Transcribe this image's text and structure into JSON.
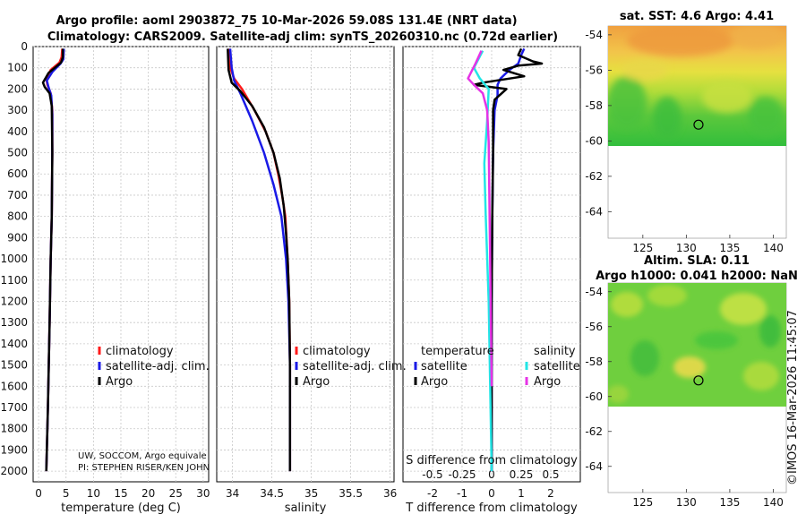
{
  "header": {
    "title_line1": "Argo profile: aoml 2903872_75 10-Mar-2026 59.08S 131.4E (NRT data)",
    "title_line2": "Climatology: CARS2009. Satellite-adj clim: synTS_20260310.nc (0.72d earlier)"
  },
  "depth_ticks": [
    "0",
    "100",
    "200",
    "300",
    "400",
    "500",
    "600",
    "700",
    "800",
    "900",
    "1000",
    "1100",
    "1200",
    "1300",
    "1400",
    "1500",
    "1600",
    "1700",
    "1800",
    "1900",
    "2000"
  ],
  "colors": {
    "climatology": "#ff1a1a",
    "satellite": "#1a1ae6",
    "argo": "#000000",
    "cyan": "#22e6e6",
    "magenta": "#e633e6"
  },
  "chart_data": [
    {
      "type": "line",
      "name": "temperature",
      "xlabel": "temperature (deg C)",
      "ylabel": "depth",
      "xlim": [
        -1,
        31
      ],
      "ylim": [
        2050,
        0
      ],
      "xticks": [
        "0",
        "5",
        "10",
        "15",
        "20",
        "25",
        "30"
      ],
      "legend": [
        "climatology",
        "satellite-adj. clim.",
        "Argo"
      ],
      "credit_line1": "UW, SOCCOM, Argo equivale",
      "credit_line2": "PI: STEPHEN RISER/KEN JOHN",
      "series": [
        {
          "name": "climatology",
          "color": "#ff1a1a",
          "points": [
            [
              4.3,
              10
            ],
            [
              4.2,
              50
            ],
            [
              3.8,
              75
            ],
            [
              2.2,
              110
            ],
            [
              1.4,
              150
            ],
            [
              1.6,
              180
            ],
            [
              2.2,
              220
            ],
            [
              2.5,
              300
            ],
            [
              2.5,
              500
            ],
            [
              2.4,
              800
            ],
            [
              2.2,
              1000
            ],
            [
              2.0,
              1300
            ],
            [
              1.7,
              1700
            ],
            [
              1.4,
              2000
            ]
          ]
        },
        {
          "name": "satellite-adj. clim.",
          "color": "#1a1ae6",
          "points": [
            [
              4.6,
              10
            ],
            [
              4.5,
              60
            ],
            [
              4.0,
              80
            ],
            [
              2.5,
              120
            ],
            [
              1.5,
              160
            ],
            [
              1.8,
              190
            ],
            [
              2.3,
              230
            ],
            [
              2.5,
              320
            ],
            [
              2.5,
              500
            ],
            [
              2.4,
              800
            ],
            [
              2.2,
              1000
            ],
            [
              2.0,
              1300
            ],
            [
              1.7,
              1700
            ],
            [
              1.4,
              2000
            ]
          ]
        },
        {
          "name": "Argo",
          "color": "#000000",
          "points": [
            [
              4.4,
              10
            ],
            [
              4.4,
              50
            ],
            [
              4.1,
              75
            ],
            [
              1.8,
              125
            ],
            [
              0.8,
              170
            ],
            [
              1.1,
              190
            ],
            [
              2.0,
              220
            ],
            [
              2.4,
              280
            ],
            [
              2.5,
              500
            ],
            [
              2.4,
              800
            ],
            [
              2.2,
              1000
            ],
            [
              2.0,
              1300
            ],
            [
              1.7,
              1700
            ],
            [
              1.4,
              2000
            ]
          ]
        }
      ]
    },
    {
      "type": "line",
      "name": "salinity",
      "xlabel": "salinity",
      "ylabel": "depth",
      "xlim": [
        33.8,
        36.05
      ],
      "ylim": [
        2050,
        0
      ],
      "xticks": [
        "34",
        "34.5",
        "35",
        "35.5",
        "36"
      ],
      "legend": [
        "climatology",
        "satellite-adj. clim.",
        "Argo"
      ],
      "series": [
        {
          "name": "climatology",
          "color": "#ff1a1a",
          "points": [
            [
              33.95,
              10
            ],
            [
              33.97,
              100
            ],
            [
              34.02,
              150
            ],
            [
              34.12,
              200
            ],
            [
              34.28,
              300
            ],
            [
              34.42,
              400
            ],
            [
              34.52,
              500
            ],
            [
              34.58,
              600
            ],
            [
              34.63,
              700
            ],
            [
              34.67,
              800
            ],
            [
              34.7,
              1000
            ],
            [
              34.72,
              1200
            ],
            [
              34.73,
              1500
            ],
            [
              34.73,
              2000
            ]
          ]
        },
        {
          "name": "satellite-adj. clim.",
          "color": "#1a1ae6",
          "points": [
            [
              33.97,
              10
            ],
            [
              33.99,
              100
            ],
            [
              34.02,
              160
            ],
            [
              34.1,
              220
            ],
            [
              34.25,
              350
            ],
            [
              34.4,
              500
            ],
            [
              34.52,
              650
            ],
            [
              34.62,
              800
            ],
            [
              34.68,
              1000
            ],
            [
              34.71,
              1200
            ],
            [
              34.73,
              1500
            ],
            [
              34.73,
              2000
            ]
          ]
        },
        {
          "name": "Argo",
          "color": "#000000",
          "points": [
            [
              33.94,
              10
            ],
            [
              33.95,
              110
            ],
            [
              33.99,
              170
            ],
            [
              34.1,
              210
            ],
            [
              34.25,
              280
            ],
            [
              34.4,
              380
            ],
            [
              34.52,
              500
            ],
            [
              34.6,
              620
            ],
            [
              34.65,
              750
            ],
            [
              34.68,
              880
            ],
            [
              34.7,
              1000
            ],
            [
              34.72,
              1200
            ],
            [
              34.73,
              1500
            ],
            [
              34.73,
              2000
            ]
          ]
        }
      ]
    },
    {
      "type": "line",
      "name": "difference",
      "xlabel": "T difference from climatology",
      "xlabel2": "S difference from climatology",
      "ylabel": "depth",
      "xlim": [
        -3,
        3
      ],
      "ylim": [
        2050,
        0
      ],
      "xticks": [
        {
          "v": -2,
          "t": "-2"
        },
        {
          "v": -1,
          "t": "-1"
        },
        {
          "v": 0,
          "t": "0"
        },
        {
          "v": 1,
          "t": "1"
        },
        {
          "v": 2,
          "t": "2"
        }
      ],
      "xticks2": [
        {
          "v": -2,
          "t": "-0.5"
        },
        {
          "v": -1,
          "t": "-0.25"
        },
        {
          "v": 0,
          "t": "0"
        },
        {
          "v": 1,
          "t": "0.25"
        },
        {
          "v": 2,
          "t": "0.5"
        }
      ],
      "legend_left_title": "temperature",
      "legend_right_title": "salinity",
      "legend_left": [
        "satellite",
        "Argo"
      ],
      "legend_right": [
        "satellite",
        "Argo"
      ],
      "series": [
        {
          "name": "T satellite",
          "color": "#1a1ae6",
          "points": [
            [
              1.1,
              10
            ],
            [
              1.0,
              40
            ],
            [
              0.9,
              80
            ],
            [
              0.6,
              110
            ],
            [
              0.3,
              150
            ],
            [
              0.2,
              180
            ],
            [
              0.2,
              230
            ],
            [
              0.1,
              300
            ],
            [
              0.05,
              500
            ],
            [
              0.02,
              800
            ],
            [
              0.0,
              1200
            ],
            [
              0.0,
              2000
            ]
          ]
        },
        {
          "name": "T Argo",
          "color": "#000000",
          "points": [
            [
              1.0,
              10
            ],
            [
              0.9,
              40
            ],
            [
              1.4,
              70
            ],
            [
              1.7,
              80
            ],
            [
              0.9,
              90
            ],
            [
              0.4,
              110
            ],
            [
              1.1,
              140
            ],
            [
              -0.3,
              170
            ],
            [
              -0.6,
              180
            ],
            [
              0.5,
              200
            ],
            [
              0.1,
              250
            ],
            [
              0.05,
              300
            ],
            [
              0.05,
              500
            ],
            [
              0.02,
              800
            ],
            [
              0.0,
              1200
            ],
            [
              0.0,
              2000
            ]
          ]
        },
        {
          "name": "S satellite",
          "color": "#22e6e6",
          "points": [
            [
              -0.3,
              20
            ],
            [
              -0.6,
              100
            ],
            [
              -0.4,
              150
            ],
            [
              -0.1,
              200
            ],
            [
              -0.15,
              350
            ],
            [
              -0.25,
              550
            ],
            [
              -0.2,
              800
            ],
            [
              -0.1,
              1200
            ],
            [
              0.0,
              2000
            ]
          ]
        },
        {
          "name": "S Argo",
          "color": "#e633e6",
          "points": [
            [
              -0.35,
              20
            ],
            [
              -0.55,
              80
            ],
            [
              -0.8,
              150
            ],
            [
              -0.6,
              180
            ],
            [
              -0.3,
              220
            ],
            [
              -0.15,
              300
            ],
            [
              -0.1,
              450
            ],
            [
              0.0,
              1600
            ]
          ]
        }
      ]
    },
    {
      "type": "heatmap",
      "name": "sst_map",
      "title": "sat. SST: 4.6 Argo: 4.41",
      "xlim": [
        121,
        141.5
      ],
      "ylim": [
        -65.5,
        -53.5
      ],
      "xticks": [
        "125",
        "130",
        "135",
        "140"
      ],
      "yticks": [
        "-54",
        "-56",
        "-58",
        "-60",
        "-62",
        "-64"
      ],
      "marker": [
        131.4,
        -59.08
      ]
    },
    {
      "type": "heatmap",
      "name": "sla_map",
      "title1": "Altim. SLA: 0.11",
      "title2": "Argo h1000: 0.041 h2000: NaN",
      "xlim": [
        121,
        141.5
      ],
      "ylim": [
        -65.5,
        -53.5
      ],
      "xticks": [
        "125",
        "130",
        "135",
        "140"
      ],
      "yticks": [
        "-54",
        "-56",
        "-58",
        "-60",
        "-62",
        "-64"
      ],
      "marker": [
        131.4,
        -59.08
      ]
    }
  ],
  "footer": {
    "stamp": "©IMOS 16-Mar-2026 11:45:07"
  }
}
